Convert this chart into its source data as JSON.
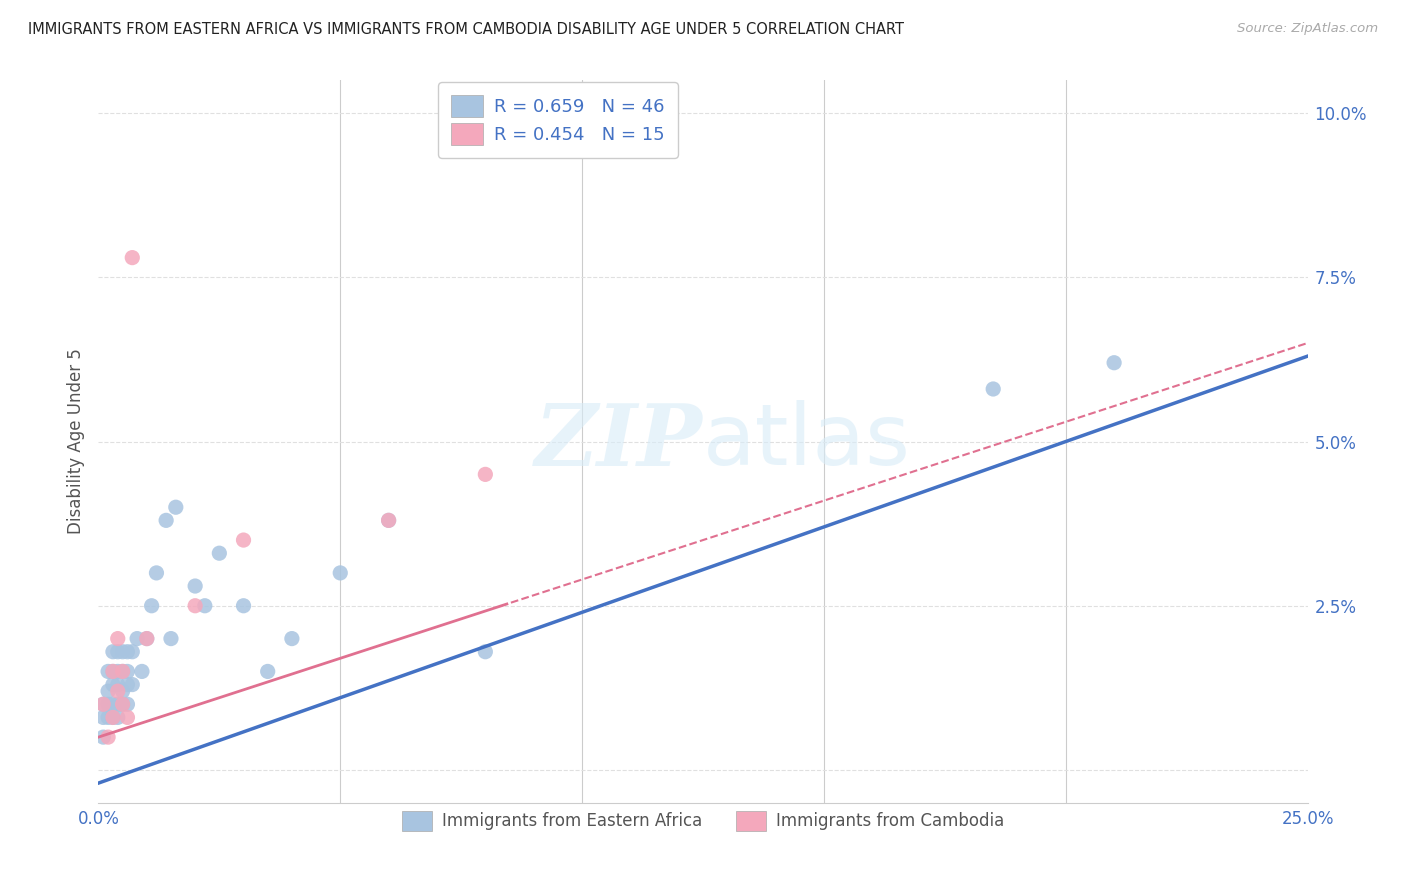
{
  "title": "IMMIGRANTS FROM EASTERN AFRICA VS IMMIGRANTS FROM CAMBODIA DISABILITY AGE UNDER 5 CORRELATION CHART",
  "source": "Source: ZipAtlas.com",
  "ylabel": "Disability Age Under 5",
  "xlim": [
    0,
    0.25
  ],
  "ylim": [
    -0.005,
    0.105
  ],
  "xticks": [
    0.0,
    0.05,
    0.1,
    0.15,
    0.2,
    0.25
  ],
  "yticks": [
    0.0,
    0.025,
    0.05,
    0.075,
    0.1
  ],
  "xticklabels": [
    "0.0%",
    "",
    "",
    "",
    "",
    "25.0%"
  ],
  "yticklabels": [
    "",
    "2.5%",
    "5.0%",
    "7.5%",
    "10.0%"
  ],
  "legend_r1": "R = 0.659",
  "legend_n1": "N = 46",
  "legend_r2": "R = 0.454",
  "legend_n2": "N = 15",
  "series1_color": "#a8c4e0",
  "series2_color": "#f4a8bc",
  "trend1_color": "#4472c4",
  "trend2_color": "#e07090",
  "series1_x": [
    0.001,
    0.001,
    0.001,
    0.002,
    0.002,
    0.002,
    0.002,
    0.003,
    0.003,
    0.003,
    0.003,
    0.003,
    0.004,
    0.004,
    0.004,
    0.004,
    0.004,
    0.005,
    0.005,
    0.005,
    0.005,
    0.006,
    0.006,
    0.006,
    0.006,
    0.007,
    0.007,
    0.008,
    0.009,
    0.01,
    0.011,
    0.012,
    0.014,
    0.015,
    0.016,
    0.02,
    0.022,
    0.025,
    0.03,
    0.035,
    0.04,
    0.05,
    0.06,
    0.08,
    0.185,
    0.21
  ],
  "series1_y": [
    0.005,
    0.008,
    0.01,
    0.008,
    0.01,
    0.012,
    0.015,
    0.008,
    0.01,
    0.013,
    0.015,
    0.018,
    0.008,
    0.01,
    0.013,
    0.015,
    0.018,
    0.01,
    0.012,
    0.015,
    0.018,
    0.01,
    0.013,
    0.015,
    0.018,
    0.013,
    0.018,
    0.02,
    0.015,
    0.02,
    0.025,
    0.03,
    0.038,
    0.02,
    0.04,
    0.028,
    0.025,
    0.033,
    0.025,
    0.015,
    0.02,
    0.03,
    0.038,
    0.018,
    0.058,
    0.062
  ],
  "series2_x": [
    0.001,
    0.002,
    0.003,
    0.003,
    0.004,
    0.004,
    0.005,
    0.005,
    0.006,
    0.007,
    0.01,
    0.02,
    0.03,
    0.06,
    0.08
  ],
  "series2_y": [
    0.01,
    0.005,
    0.008,
    0.015,
    0.012,
    0.02,
    0.01,
    0.015,
    0.008,
    0.078,
    0.02,
    0.025,
    0.035,
    0.038,
    0.045
  ],
  "background_color": "#ffffff",
  "grid_color": "#e0e0e0",
  "trend1_intercept": -0.002,
  "trend1_slope": 0.26,
  "trend2_intercept": 0.005,
  "trend2_slope": 0.24
}
